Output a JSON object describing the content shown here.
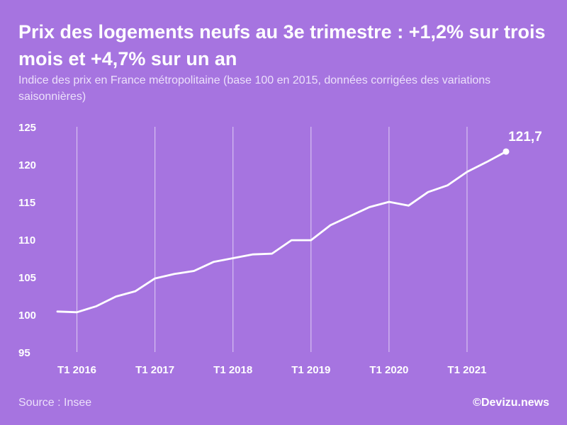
{
  "header": {
    "title": "Prix des logements neufs au 3e trimestre : +1,2% sur trois mois et +4,7% sur un an",
    "subtitle": "Indice des prix en France métropolitaine (base 100 en 2015, données corrigées des variations saisonnières)"
  },
  "footer": {
    "source": "Source : Insee",
    "brand": "©Devizu.news"
  },
  "colors": {
    "background": "#a674e0",
    "line": "#ffffff",
    "grid": "#ffffff"
  },
  "chart_data": {
    "type": "line",
    "title": "Prix des logements neufs au 3e trimestre : +1,2% sur trois mois et +4,7% sur un an",
    "subtitle": "Indice des prix en France métropolitaine (base 100 en 2015, données corrigées des variations saisonnières)",
    "xlabel": "",
    "ylabel": "",
    "ylim": [
      95,
      125
    ],
    "y_ticks": [
      95,
      100,
      105,
      110,
      115,
      120,
      125
    ],
    "x_tick_labels": [
      "T1 2016",
      "T1 2017",
      "T1 2018",
      "T1 2019",
      "T1 2020",
      "T1 2021"
    ],
    "x_axis": "quarters from T4 2015 to T3 2021, vertical gridline at each T1",
    "grid": "vertical lines at T1 of each year",
    "x": [
      "T4 2015",
      "T1 2016",
      "T2 2016",
      "T3 2016",
      "T4 2016",
      "T1 2017",
      "T2 2017",
      "T3 2017",
      "T4 2017",
      "T1 2018",
      "T2 2018",
      "T3 2018",
      "T4 2018",
      "T1 2019",
      "T2 2019",
      "T3 2019",
      "T4 2019",
      "T1 2020",
      "T2 2020",
      "T3 2020",
      "T4 2020",
      "T1 2021",
      "T2 2021",
      "T3 2021"
    ],
    "series": [
      {
        "values": [
          100.4,
          100.3,
          101.1,
          102.4,
          103.1,
          104.8,
          105.4,
          105.8,
          107.0,
          107.5,
          108.0,
          108.1,
          109.9,
          109.9,
          111.9,
          113.1,
          114.3,
          115.0,
          114.5,
          116.3,
          117.2,
          119.0,
          120.3,
          121.7
        ]
      }
    ],
    "annotations": [
      {
        "x": "T3 2021",
        "y": 121.7,
        "text": "121,7"
      }
    ]
  }
}
